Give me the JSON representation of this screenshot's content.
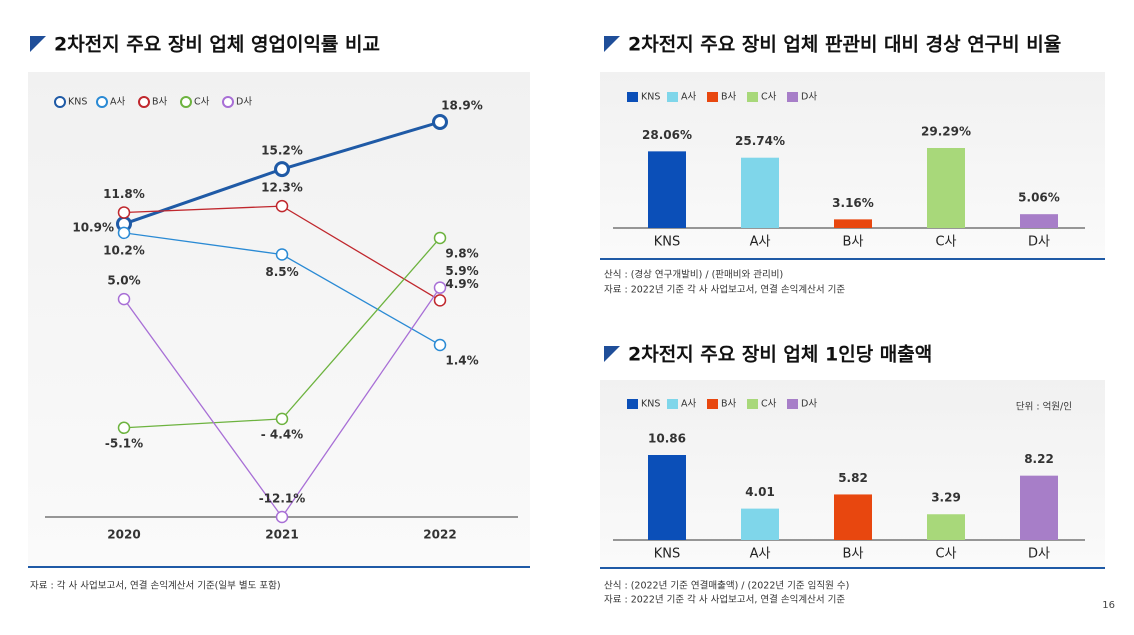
{
  "chart_data": [
    {
      "type": "line",
      "title": "2차전지 주요 장비 업체 영업이익률 비교",
      "categories": [
        "2020",
        "2021",
        "2022"
      ],
      "series": [
        {
          "name": "KNS",
          "color": "#1f5aa6",
          "values": [
            10.9,
            15.2,
            18.9
          ],
          "value_labels": [
            "10.9%",
            "15.2%",
            "18.9%"
          ]
        },
        {
          "name": "A사",
          "color": "#2a8ad4",
          "values": [
            10.2,
            8.5,
            1.4
          ],
          "value_labels": [
            "10.2%",
            "8.5%",
            "1.4%"
          ]
        },
        {
          "name": "B사",
          "color": "#c0272d",
          "values": [
            11.8,
            12.3,
            4.9
          ],
          "value_labels": [
            "11.8%",
            "12.3%",
            "4.9%"
          ]
        },
        {
          "name": "C사",
          "color": "#6db33f",
          "values": [
            -5.1,
            -4.4,
            9.8
          ],
          "value_labels": [
            "-5.1%",
            "- 4.4%",
            "9.8%"
          ]
        },
        {
          "name": "D사",
          "color": "#a86fd6",
          "values": [
            5.0,
            -12.1,
            5.9
          ],
          "value_labels": [
            "5.0%",
            "-12.1%",
            "5.9%"
          ]
        }
      ],
      "note": "자료 : 각 사 사업보고서, 연결 손익계산서 기준(일부 별도 포함)"
    },
    {
      "type": "bar",
      "title": "2차전지 주요 장비 업체 판관비 대비 경상 연구비 비율",
      "categories": [
        "KNS",
        "A사",
        "B사",
        "C사",
        "D사"
      ],
      "values": [
        28.06,
        25.74,
        3.16,
        29.29,
        5.06
      ],
      "value_labels": [
        "28.06%",
        "25.74%",
        "3.16%",
        "29.29%",
        "5.06%"
      ],
      "colors": [
        "#0b4fb8",
        "#7fd6ea",
        "#e8470f",
        "#a8d87a",
        "#a77ec8"
      ],
      "notes": [
        "산식 : (경상 연구개발비) / (판매비와 관리비)",
        "자료 : 2022년 기준 각 사 사업보고서, 연결 손익계산서 기준"
      ]
    },
    {
      "type": "bar",
      "title": "2차전지 주요 장비 업체 1인당 매출액",
      "unit": "단위 : 억원/인",
      "categories": [
        "KNS",
        "A사",
        "B사",
        "C사",
        "D사"
      ],
      "values": [
        10.86,
        4.01,
        5.82,
        3.29,
        8.22
      ],
      "colors": [
        "#0b4fb8",
        "#7fd6ea",
        "#e8470f",
        "#a8d87a",
        "#a77ec8"
      ],
      "notes": [
        "산식 : (2022년 기준  연결매출액) / (2022년 기준 임직원 수)",
        "자료 : 2022년 기준 각 사 사업보고서, 연결 손익계산서 기준"
      ]
    }
  ],
  "page_number": "16"
}
